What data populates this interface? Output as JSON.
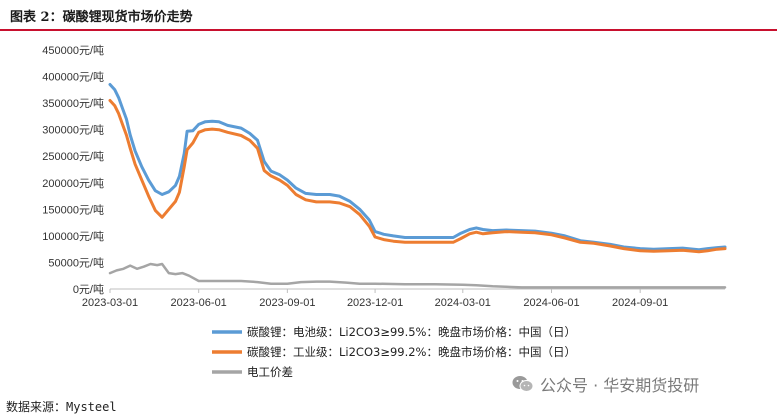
{
  "header": {
    "title": "图表 2：碳酸锂现货市场价走势"
  },
  "footer": {
    "source": "数据来源：Mysteel"
  },
  "watermark": {
    "text": "公众号 · 华安期货投研",
    "icon": "wechat-icon"
  },
  "chart_data": {
    "type": "line",
    "title": "",
    "xlabel": "",
    "ylabel": "",
    "ylim": [
      0,
      450000
    ],
    "y_ticks": [
      0,
      50000,
      100000,
      150000,
      200000,
      250000,
      300000,
      350000,
      400000,
      450000
    ],
    "y_tick_labels": [
      "0元/吨",
      "50000元/吨",
      "100000元/吨",
      "150000元/吨",
      "200000元/吨",
      "250000元/吨",
      "300000元/吨",
      "350000元/吨",
      "400000元/吨",
      "450000元/吨"
    ],
    "x_range": [
      "2023-03-01",
      "2024-11-28"
    ],
    "x_ticks": [
      "2023-03-01",
      "2023-06-01",
      "2023-09-01",
      "2023-12-01",
      "2024-03-01",
      "2024-06-01",
      "2024-09-01"
    ],
    "grid": false,
    "legend_position": "bottom",
    "series": [
      {
        "name": "碳酸锂：电池级：Li2CO3≥99.5%：晚盘市场价格：中国（日）",
        "color": "#5b9bd5",
        "points": [
          [
            "2023-03-01",
            385000
          ],
          [
            "2023-03-06",
            375000
          ],
          [
            "2023-03-10",
            360000
          ],
          [
            "2023-03-14",
            340000
          ],
          [
            "2023-03-18",
            320000
          ],
          [
            "2023-03-22",
            290000
          ],
          [
            "2023-03-27",
            260000
          ],
          [
            "2023-04-03",
            230000
          ],
          [
            "2023-04-10",
            205000
          ],
          [
            "2023-04-17",
            185000
          ],
          [
            "2023-04-24",
            178000
          ],
          [
            "2023-05-01",
            183000
          ],
          [
            "2023-05-08",
            195000
          ],
          [
            "2023-05-12",
            212000
          ],
          [
            "2023-05-17",
            255000
          ],
          [
            "2023-05-20",
            297000
          ],
          [
            "2023-05-26",
            298000
          ],
          [
            "2023-06-01",
            310000
          ],
          [
            "2023-06-08",
            315000
          ],
          [
            "2023-06-15",
            316000
          ],
          [
            "2023-06-22",
            315000
          ],
          [
            "2023-07-01",
            308000
          ],
          [
            "2023-07-15",
            303000
          ],
          [
            "2023-07-24",
            293000
          ],
          [
            "2023-08-01",
            280000
          ],
          [
            "2023-08-08",
            240000
          ],
          [
            "2023-08-15",
            222000
          ],
          [
            "2023-08-24",
            215000
          ],
          [
            "2023-09-01",
            205000
          ],
          [
            "2023-09-10",
            190000
          ],
          [
            "2023-09-20",
            180000
          ],
          [
            "2023-10-01",
            178000
          ],
          [
            "2023-10-15",
            178000
          ],
          [
            "2023-10-25",
            175000
          ],
          [
            "2023-11-05",
            165000
          ],
          [
            "2023-11-15",
            150000
          ],
          [
            "2023-11-25",
            130000
          ],
          [
            "2023-12-01",
            108000
          ],
          [
            "2023-12-10",
            103000
          ],
          [
            "2023-12-20",
            100000
          ],
          [
            "2024-01-01",
            97000
          ],
          [
            "2024-01-20",
            97000
          ],
          [
            "2024-02-10",
            97000
          ],
          [
            "2024-02-20",
            97000
          ],
          [
            "2024-02-28",
            105000
          ],
          [
            "2024-03-08",
            112000
          ],
          [
            "2024-03-15",
            115000
          ],
          [
            "2024-03-22",
            112000
          ],
          [
            "2024-04-01",
            110000
          ],
          [
            "2024-04-15",
            111000
          ],
          [
            "2024-05-01",
            110000
          ],
          [
            "2024-05-15",
            109000
          ],
          [
            "2024-06-01",
            105000
          ],
          [
            "2024-06-15",
            100000
          ],
          [
            "2024-07-01",
            91000
          ],
          [
            "2024-07-15",
            88000
          ],
          [
            "2024-08-01",
            84000
          ],
          [
            "2024-08-15",
            79000
          ],
          [
            "2024-09-01",
            76000
          ],
          [
            "2024-09-15",
            75000
          ],
          [
            "2024-10-01",
            76000
          ],
          [
            "2024-10-15",
            77000
          ],
          [
            "2024-11-01",
            74000
          ],
          [
            "2024-11-10",
            76000
          ],
          [
            "2024-11-20",
            78000
          ],
          [
            "2024-11-28",
            79000
          ]
        ]
      },
      {
        "name": "碳酸锂：工业级：Li2CO3≥99.2%：晚盘市场价格：中国（日）",
        "color": "#ed7d31",
        "points": [
          [
            "2023-03-01",
            355000
          ],
          [
            "2023-03-06",
            345000
          ],
          [
            "2023-03-10",
            330000
          ],
          [
            "2023-03-14",
            310000
          ],
          [
            "2023-03-18",
            290000
          ],
          [
            "2023-03-22",
            265000
          ],
          [
            "2023-03-27",
            235000
          ],
          [
            "2023-04-03",
            205000
          ],
          [
            "2023-04-10",
            175000
          ],
          [
            "2023-04-17",
            148000
          ],
          [
            "2023-04-24",
            135000
          ],
          [
            "2023-05-01",
            150000
          ],
          [
            "2023-05-08",
            165000
          ],
          [
            "2023-05-12",
            182000
          ],
          [
            "2023-05-17",
            230000
          ],
          [
            "2023-05-20",
            262000
          ],
          [
            "2023-05-26",
            275000
          ],
          [
            "2023-06-01",
            295000
          ],
          [
            "2023-06-08",
            300000
          ],
          [
            "2023-06-15",
            301000
          ],
          [
            "2023-06-22",
            300000
          ],
          [
            "2023-07-01",
            295000
          ],
          [
            "2023-07-15",
            289000
          ],
          [
            "2023-07-24",
            280000
          ],
          [
            "2023-08-01",
            265000
          ],
          [
            "2023-08-08",
            223000
          ],
          [
            "2023-08-15",
            213000
          ],
          [
            "2023-08-24",
            205000
          ],
          [
            "2023-09-01",
            195000
          ],
          [
            "2023-09-10",
            178000
          ],
          [
            "2023-09-20",
            168000
          ],
          [
            "2023-10-01",
            164000
          ],
          [
            "2023-10-15",
            164000
          ],
          [
            "2023-10-25",
            162000
          ],
          [
            "2023-11-05",
            155000
          ],
          [
            "2023-11-15",
            140000
          ],
          [
            "2023-11-25",
            118000
          ],
          [
            "2023-12-01",
            98000
          ],
          [
            "2023-12-10",
            93000
          ],
          [
            "2023-12-20",
            90000
          ],
          [
            "2024-01-01",
            88000
          ],
          [
            "2024-01-20",
            88000
          ],
          [
            "2024-02-10",
            88000
          ],
          [
            "2024-02-20",
            88000
          ],
          [
            "2024-02-28",
            95000
          ],
          [
            "2024-03-08",
            104000
          ],
          [
            "2024-03-15",
            107000
          ],
          [
            "2024-03-22",
            104000
          ],
          [
            "2024-04-01",
            106000
          ],
          [
            "2024-04-15",
            108000
          ],
          [
            "2024-05-01",
            107000
          ],
          [
            "2024-05-15",
            106000
          ],
          [
            "2024-06-01",
            102000
          ],
          [
            "2024-06-15",
            96000
          ],
          [
            "2024-07-01",
            88000
          ],
          [
            "2024-07-15",
            86000
          ],
          [
            "2024-08-01",
            81000
          ],
          [
            "2024-08-15",
            76000
          ],
          [
            "2024-09-01",
            72000
          ],
          [
            "2024-09-15",
            71000
          ],
          [
            "2024-10-01",
            72000
          ],
          [
            "2024-10-15",
            73000
          ],
          [
            "2024-11-01",
            70000
          ],
          [
            "2024-11-10",
            72000
          ],
          [
            "2024-11-20",
            75000
          ],
          [
            "2024-11-28",
            76000
          ]
        ]
      },
      {
        "name": "电工价差",
        "color": "#a5a5a5",
        "points": [
          [
            "2023-03-01",
            30000
          ],
          [
            "2023-03-08",
            35000
          ],
          [
            "2023-03-15",
            38000
          ],
          [
            "2023-03-22",
            44000
          ],
          [
            "2023-03-29",
            38000
          ],
          [
            "2023-04-05",
            42000
          ],
          [
            "2023-04-12",
            47000
          ],
          [
            "2023-04-19",
            45000
          ],
          [
            "2023-04-24",
            47000
          ],
          [
            "2023-05-01",
            30000
          ],
          [
            "2023-05-08",
            28000
          ],
          [
            "2023-05-15",
            30000
          ],
          [
            "2023-05-22",
            25000
          ],
          [
            "2023-06-01",
            15000
          ],
          [
            "2023-06-15",
            15000
          ],
          [
            "2023-07-01",
            15000
          ],
          [
            "2023-07-15",
            15000
          ],
          [
            "2023-08-01",
            13000
          ],
          [
            "2023-08-15",
            10000
          ],
          [
            "2023-09-01",
            10000
          ],
          [
            "2023-09-15",
            13000
          ],
          [
            "2023-10-01",
            14000
          ],
          [
            "2023-10-15",
            14000
          ],
          [
            "2023-11-01",
            12000
          ],
          [
            "2023-11-15",
            10000
          ],
          [
            "2023-12-01",
            10000
          ],
          [
            "2024-01-01",
            9000
          ],
          [
            "2024-02-01",
            9000
          ],
          [
            "2024-03-01",
            8000
          ],
          [
            "2024-03-15",
            7000
          ],
          [
            "2024-04-01",
            5000
          ],
          [
            "2024-05-01",
            3000
          ],
          [
            "2024-06-01",
            3000
          ],
          [
            "2024-07-01",
            3000
          ],
          [
            "2024-08-01",
            3000
          ],
          [
            "2024-09-01",
            3000
          ],
          [
            "2024-10-01",
            3000
          ],
          [
            "2024-11-01",
            3000
          ],
          [
            "2024-11-28",
            3000
          ]
        ]
      }
    ]
  }
}
